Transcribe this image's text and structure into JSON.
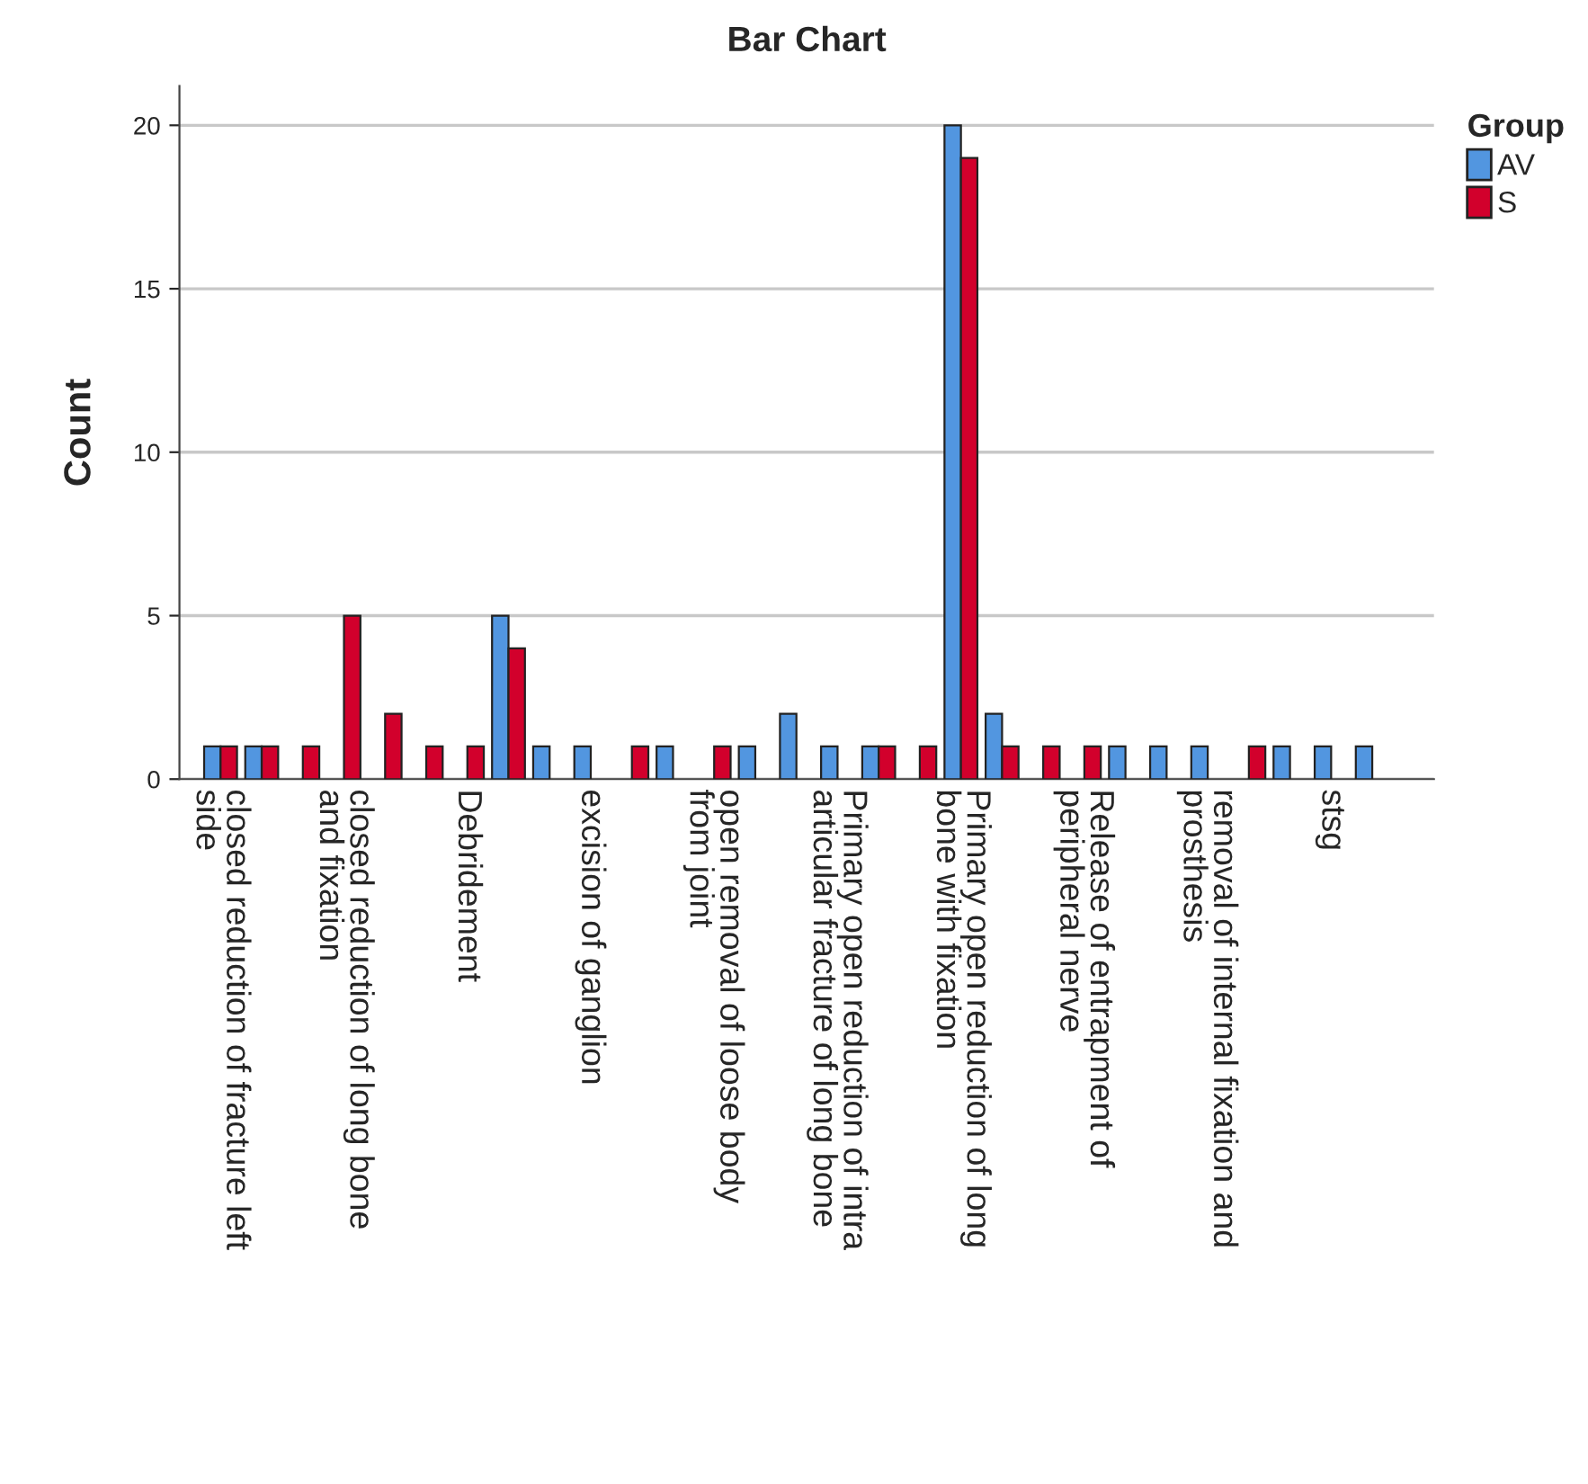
{
  "chart_data": {
    "type": "bar",
    "title": "Bar Chart",
    "ylabel": "Count",
    "legend_title": "Group",
    "categories": [
      "closed reduction of fracture left\nside",
      null,
      null,
      "closed reduction of long bone\nand fixation",
      null,
      null,
      "Debridement",
      null,
      null,
      "excision of ganglion",
      null,
      null,
      "open removal of loose body\nfrom joint",
      null,
      null,
      "Primary open reduction of intra\narticular fracture of long bone",
      null,
      null,
      "Primary open reduction of long\nbone with fixation",
      null,
      null,
      "Release of entrapment of\nperipheral nerve",
      null,
      null,
      "removal of internal fixation and\nprosthesis",
      null,
      null,
      "stsg",
      null
    ],
    "series": [
      {
        "name": "AV",
        "color": "#5296e0",
        "values": [
          1,
          1,
          0,
          0,
          0,
          0,
          0,
          5,
          1,
          1,
          0,
          1,
          0,
          1,
          2,
          1,
          1,
          0,
          20,
          2,
          0,
          0,
          1,
          1,
          1,
          0,
          1,
          1,
          1
        ]
      },
      {
        "name": "S",
        "color": "#d2002c",
        "values": [
          1,
          1,
          1,
          5,
          2,
          1,
          1,
          4,
          0,
          0,
          1,
          0,
          1,
          0,
          0,
          0,
          1,
          1,
          19,
          1,
          1,
          1,
          0,
          0,
          0,
          1,
          0,
          0,
          0
        ]
      }
    ],
    "ylim": [
      0,
      21.2
    ],
    "yticks": [
      0,
      5,
      10,
      15,
      20
    ],
    "grid": "y",
    "legend": "top right"
  }
}
